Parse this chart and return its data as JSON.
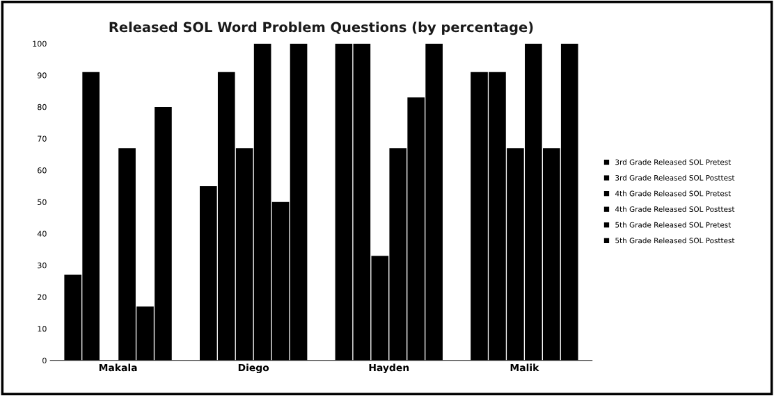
{
  "chart_data": {
    "type": "bar",
    "title": "Released SOL Word Problem Questions (by percentage)",
    "categories": [
      "Makala",
      "Diego",
      "Hayden",
      "Malik"
    ],
    "series": [
      {
        "name": "3rd Grade Released SOL Pretest",
        "color": "#000000",
        "values": [
          27,
          55,
          100,
          91
        ]
      },
      {
        "name": "3rd Grade Released SOL Posttest",
        "color": "#000000",
        "values": [
          91,
          91,
          100,
          91
        ]
      },
      {
        "name": "4th Grade Released SOL Pretest",
        "color": "#000000",
        "values": [
          0,
          67,
          33,
          67
        ]
      },
      {
        "name": "4th Grade Released SOL Posttest",
        "color": "#000000",
        "values": [
          67,
          100,
          67,
          100
        ]
      },
      {
        "name": "5th Grade Released SOL Pretest",
        "color": "#000000",
        "values": [
          17,
          50,
          83,
          67
        ]
      },
      {
        "name": "5th Grade Released SOL Posttest",
        "color": "#000000",
        "values": [
          80,
          100,
          100,
          100
        ]
      }
    ],
    "ylim": [
      0,
      100
    ],
    "yticks": [
      0,
      10,
      20,
      30,
      40,
      50,
      60,
      70,
      80,
      90,
      100
    ],
    "grid": false,
    "legend": "right"
  }
}
